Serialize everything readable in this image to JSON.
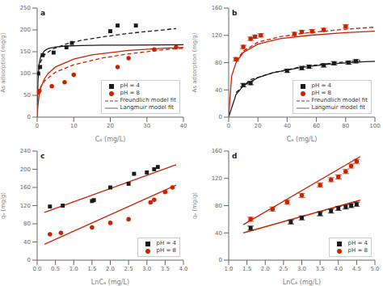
{
  "chart_data": [
    {
      "type": "scatter",
      "title": "a",
      "x_label": "Cₑ (mg/L)",
      "y_label": "As adsorption (mg/g)",
      "xlim": [
        0,
        40
      ],
      "ylim": [
        0,
        250
      ],
      "xticks": [
        0,
        10,
        20,
        30,
        40
      ],
      "yticks": [
        0,
        50,
        100,
        150,
        200,
        250
      ],
      "legend": "lower right",
      "series": [
        {
          "name": "pH = 4",
          "type": "scatter",
          "marker": "square",
          "color": "#1a1a1a",
          "x": [
            0.3,
            0.8,
            1.5,
            4.5,
            8.0,
            9.5,
            20,
            22,
            27
          ],
          "values": [
            100,
            115,
            142,
            148,
            160,
            170,
            197,
            210,
            210
          ]
        },
        {
          "name": "pH = 8",
          "type": "scatter",
          "marker": "circle",
          "color": "#cc2200",
          "x": [
            0.3,
            0.6,
            4.0,
            7.5,
            10.0,
            22,
            25,
            32,
            38
          ],
          "values": [
            57,
            60,
            71,
            80,
            97,
            115,
            135,
            155,
            160
          ]
        },
        {
          "name": "Freundlich model fit",
          "type": "line",
          "line_style": "dashed",
          "color": "#1a1a1a",
          "x": [
            0.3,
            1,
            2,
            4,
            8,
            12,
            18,
            25,
            38
          ],
          "values": [
            95,
            128,
            143,
            155,
            168,
            176,
            184,
            192,
            203
          ]
        },
        {
          "name": "Freundlich model fit",
          "type": "line",
          "line_style": "dashed",
          "color": "#cc2200",
          "x": [
            0.3,
            1,
            2,
            5,
            10,
            18,
            25,
            35,
            40
          ],
          "values": [
            52,
            70,
            83,
            103,
            120,
            136,
            145,
            155,
            158
          ]
        },
        {
          "name": "Langmuir model fit",
          "type": "line",
          "line_style": "solid",
          "color": "#1a1a1a",
          "x": [
            0,
            0.2,
            0.5,
            1,
            2,
            3,
            5,
            8,
            12,
            18,
            25,
            40
          ],
          "values": [
            0,
            80,
            120,
            140,
            152,
            157,
            161,
            163,
            164,
            165,
            165,
            166
          ]
        },
        {
          "name": "Langmuir model fit",
          "type": "line",
          "line_style": "solid",
          "color": "#cc2200",
          "x": [
            0,
            0.2,
            0.5,
            1,
            2,
            3,
            5,
            10,
            15,
            25,
            35,
            40
          ],
          "values": [
            0,
            25,
            48,
            68,
            88,
            100,
            115,
            133,
            143,
            153,
            158,
            160
          ]
        }
      ]
    },
    {
      "type": "scatter",
      "title": "b",
      "x_label": "Cₑ (mg/L)",
      "y_label": "As adsorption (mg/g)",
      "xlim": [
        0,
        100
      ],
      "ylim": [
        0,
        160
      ],
      "xticks": [
        0,
        20,
        40,
        60,
        80,
        100
      ],
      "yticks": [
        0,
        40,
        80,
        120,
        160
      ],
      "legend": "lower right",
      "series": [
        {
          "name": "pH = 4",
          "type": "scatter",
          "marker": "square",
          "color": "#1a1a1a",
          "error": 2.5,
          "x": [
            10,
            15,
            40,
            50,
            55,
            65,
            72,
            82,
            87
          ],
          "values": [
            47,
            50,
            68,
            72,
            74,
            76,
            79,
            80,
            82
          ]
        },
        {
          "name": "pH = 8",
          "type": "scatter",
          "marker": "circle",
          "color": "#cc2200",
          "error": 2.5,
          "x": [
            5,
            10,
            15,
            18,
            22,
            45,
            50,
            57,
            65,
            80
          ],
          "values": [
            85,
            103,
            115,
            118,
            120,
            122,
            125,
            126,
            128,
            133
          ]
        },
        {
          "name": "Freundlich model fit",
          "type": "line",
          "line_style": "dashed",
          "color": "#1a1a1a",
          "x": [
            5,
            15,
            30,
            50,
            70,
            90
          ],
          "values": [
            36,
            55,
            65,
            74,
            79,
            83
          ]
        },
        {
          "name": "Freundlich model fit",
          "type": "line",
          "line_style": "dashed",
          "color": "#cc2200",
          "x": [
            5,
            10,
            20,
            35,
            55,
            80,
            100
          ],
          "values": [
            82,
            97,
            110,
            118,
            124,
            129,
            132
          ]
        },
        {
          "name": "Langmuir model fit",
          "type": "line",
          "line_style": "solid",
          "color": "#1a1a1a",
          "x": [
            0,
            5,
            10,
            20,
            30,
            50,
            70,
            90,
            100
          ],
          "values": [
            0,
            33,
            46,
            58,
            65,
            73,
            78,
            81,
            82
          ]
        },
        {
          "name": "Langmuir model fit",
          "type": "line",
          "line_style": "solid",
          "color": "#cc2200",
          "x": [
            0,
            2,
            5,
            10,
            20,
            35,
            55,
            80,
            100
          ],
          "values": [
            0,
            60,
            80,
            95,
            107,
            115,
            120,
            124,
            126
          ]
        }
      ]
    },
    {
      "type": "scatter",
      "title": "c",
      "x_label": "LnCₑ (mg/L)",
      "y_label": "qₑ (mg/g)",
      "xlim": [
        0.0,
        4.0
      ],
      "ylim": [
        0,
        240
      ],
      "xticks": [
        {
          "value": 0.0,
          "label": "0.0"
        },
        0.5,
        {
          "value": 1.0,
          "label": "1.0"
        },
        1.5,
        {
          "value": 2.0,
          "label": "2.0"
        },
        2.5,
        {
          "value": 3.0,
          "label": "3.0"
        },
        3.5,
        {
          "value": 4.0,
          "label": "4.0"
        }
      ],
      "yticks": [
        0,
        40,
        80,
        120,
        160,
        200,
        240
      ],
      "legend": "lower right",
      "series": [
        {
          "name": "pH = 4",
          "type": "scatter",
          "marker": "square",
          "color": "#1a1a1a",
          "x": [
            0.35,
            0.7,
            1.5,
            1.55,
            2.0,
            2.5,
            2.65,
            3.0,
            3.2,
            3.3
          ],
          "values": [
            118,
            120,
            130,
            132,
            160,
            168,
            190,
            193,
            200,
            205
          ]
        },
        {
          "name": "pH = 8",
          "type": "scatter",
          "marker": "circle",
          "color": "#cc2200",
          "x": [
            0.35,
            0.65,
            1.5,
            2.0,
            2.5,
            3.1,
            3.2,
            3.5,
            3.7
          ],
          "values": [
            57,
            60,
            72,
            82,
            90,
            127,
            133,
            150,
            160
          ]
        },
        {
          "type": "line",
          "line_style": "solid",
          "color": "#cc2200",
          "x": [
            0.2,
            3.8
          ],
          "values": [
            105,
            210
          ]
        },
        {
          "type": "line",
          "line_style": "solid",
          "color": "#cc2200",
          "x": [
            0.2,
            3.8
          ],
          "values": [
            35,
            165
          ]
        }
      ]
    },
    {
      "type": "scatter",
      "title": "d",
      "x_label": "LnCₑ (mg/L)",
      "y_label": "qₑ (mg/g)",
      "xlim": [
        1.0,
        5.0
      ],
      "ylim": [
        0,
        160
      ],
      "xticks": [
        {
          "value": 1.0,
          "label": "1.0"
        },
        1.5,
        {
          "value": 2.0,
          "label": "2.0"
        },
        2.5,
        {
          "value": 3.0,
          "label": "3.0"
        },
        3.5,
        {
          "value": 4.0,
          "label": "4.0"
        },
        4.5,
        {
          "value": 5.0,
          "label": "5.0"
        }
      ],
      "yticks": [
        0,
        40,
        80,
        120,
        160
      ],
      "legend": "lower right",
      "series": [
        {
          "name": "pH = 4",
          "type": "scatter",
          "marker": "square",
          "color": "#1a1a1a",
          "error": 3,
          "x": [
            1.6,
            2.7,
            3.0,
            3.5,
            3.8,
            4.0,
            4.2,
            4.35,
            4.5
          ],
          "values": [
            47,
            56,
            62,
            68,
            72,
            76,
            78,
            80,
            82
          ]
        },
        {
          "name": "pH = 8",
          "type": "scatter",
          "marker": "circle",
          "color": "#cc2200",
          "error": 3,
          "x": [
            1.6,
            2.2,
            2.6,
            3.0,
            3.5,
            3.8,
            4.0,
            4.2,
            4.35,
            4.5
          ],
          "values": [
            60,
            75,
            85,
            95,
            110,
            118,
            122,
            130,
            138,
            145
          ]
        },
        {
          "type": "line",
          "line_style": "solid",
          "color": "#cc2200",
          "x": [
            1.4,
            4.6
          ],
          "values": [
            40,
            88
          ]
        },
        {
          "type": "line",
          "line_style": "solid",
          "color": "#cc2200",
          "x": [
            1.4,
            4.6
          ],
          "values": [
            52,
            152
          ]
        }
      ]
    }
  ]
}
